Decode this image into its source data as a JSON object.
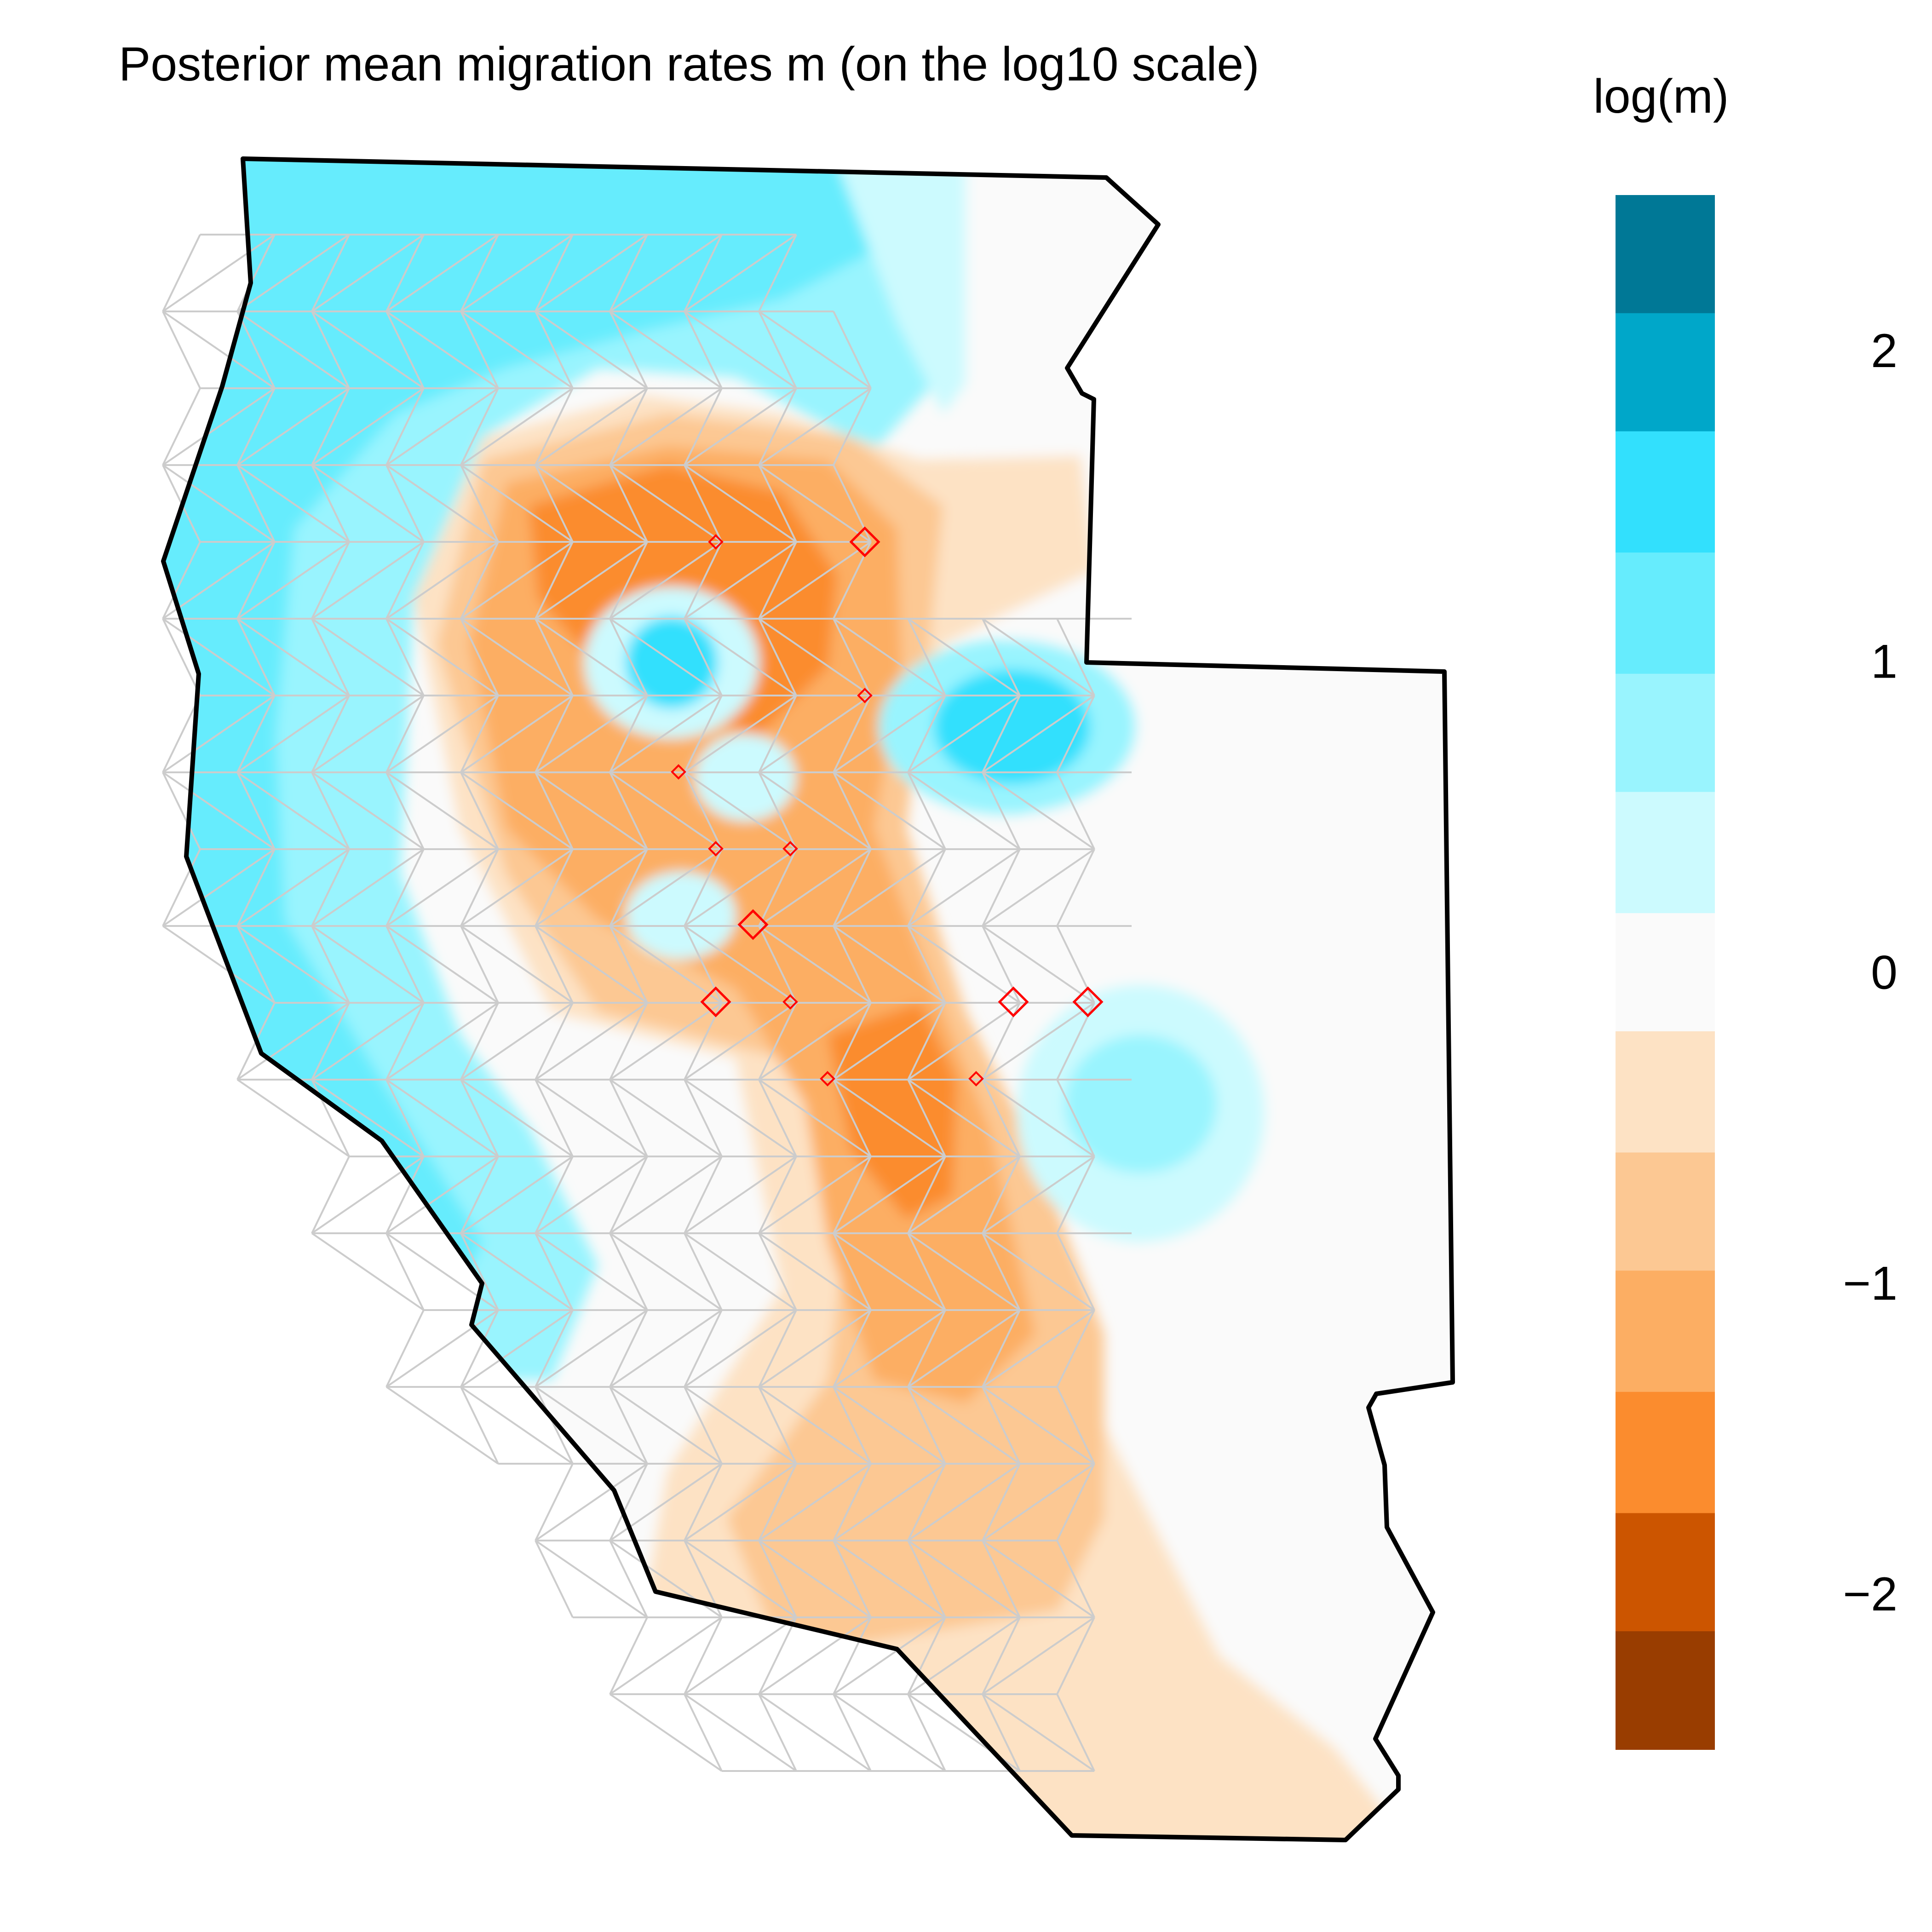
{
  "title": "Posterior mean migration rates m (on the log10 scale)",
  "legend": {
    "title": "log(m)",
    "ticks": [
      "2",
      "1",
      "0",
      "−1",
      "−2"
    ],
    "bins": [
      {
        "low": 2.12,
        "high": 2.5,
        "color": "#007896"
      },
      {
        "low": 1.74,
        "high": 2.12,
        "color": "#00a7c9"
      },
      {
        "low": 1.35,
        "high": 1.74,
        "color": "#32e0fd"
      },
      {
        "low": 0.96,
        "high": 1.35,
        "color": "#66ecfd"
      },
      {
        "low": 0.58,
        "high": 0.96,
        "color": "#99f4fe"
      },
      {
        "low": 0.19,
        "high": 0.58,
        "color": "#ccfafe"
      },
      {
        "low": -0.19,
        "high": 0.19,
        "color": "#fafafa"
      },
      {
        "low": -0.58,
        "high": -0.19,
        "color": "#fde2c4"
      },
      {
        "low": -0.96,
        "high": -0.58,
        "color": "#fcc893"
      },
      {
        "low": -1.35,
        "high": -0.96,
        "color": "#fcae63"
      },
      {
        "low": -1.74,
        "high": -1.35,
        "color": "#fb8c2e"
      },
      {
        "low": -2.12,
        "high": -1.74,
        "color": "#cc5500"
      },
      {
        "low": -2.5,
        "high": -2.12,
        "color": "#993d00"
      }
    ],
    "tick_values": [
      2,
      1,
      0,
      -1,
      -2
    ]
  },
  "map": {
    "boundary_color": "#000000",
    "grid_color": "#cccccc",
    "marker_color": "#ff0000",
    "markers": [
      {
        "size": "small"
      },
      {
        "size": "large"
      },
      {
        "size": "small"
      },
      {
        "size": "small"
      },
      {
        "size": "small"
      },
      {
        "size": "small"
      },
      {
        "size": "large"
      },
      {
        "size": "large"
      },
      {
        "size": "small"
      },
      {
        "size": "large"
      },
      {
        "size": "large"
      },
      {
        "size": "small"
      },
      {
        "size": "small"
      }
    ]
  }
}
